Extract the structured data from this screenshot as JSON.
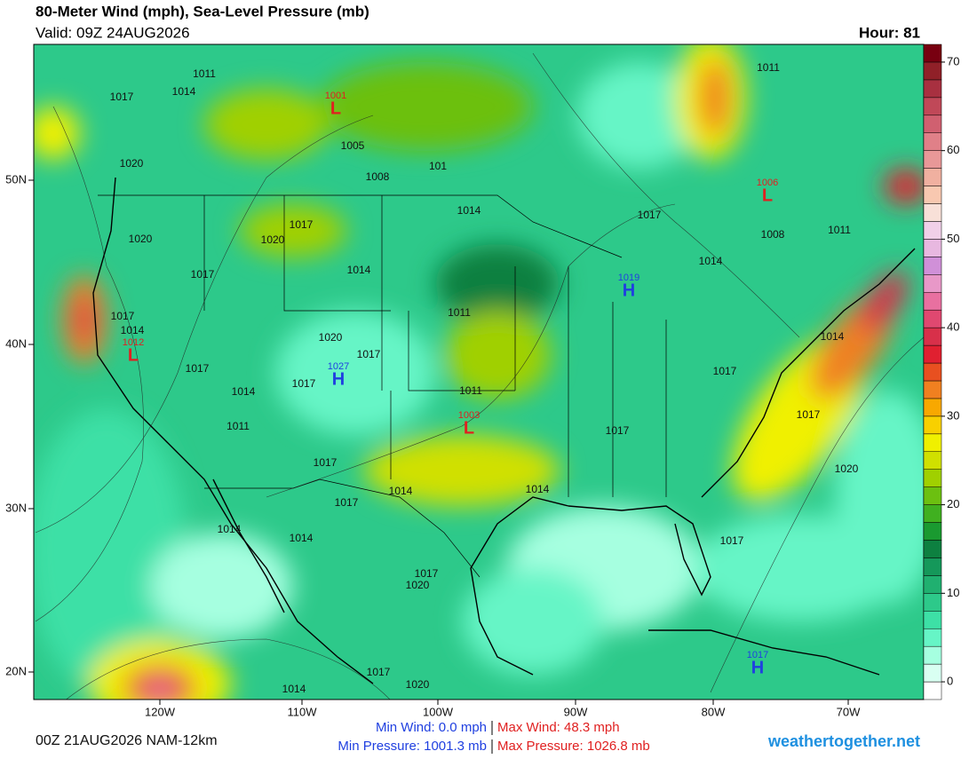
{
  "header": {
    "title": "80-Meter Wind (mph), Sea-Level Pressure (mb)",
    "valid": "Valid: 09Z 24AUG2026",
    "hour": "Hour: 81"
  },
  "colorbar": {
    "lim": [
      -2,
      72
    ],
    "ticks": [
      0,
      10,
      20,
      30,
      40,
      50,
      60,
      70
    ],
    "colors": [
      "#ffffff",
      "#d9fff2",
      "#a6ffe0",
      "#66f5c6",
      "#3de0a6",
      "#2dc98a",
      "#20b070",
      "#15985a",
      "#0d8040",
      "#1a9a30",
      "#40b020",
      "#6cc010",
      "#a0d000",
      "#d0e000",
      "#f0f000",
      "#f8d000",
      "#f8a800",
      "#f08020",
      "#e85020",
      "#e02030",
      "#d8304a",
      "#e04870",
      "#e870a0",
      "#e898c8",
      "#d090d8",
      "#e8b8e0",
      "#f0d0e8",
      "#f8e0d8",
      "#f8c8b0",
      "#f0b0a0",
      "#e89898",
      "#e08088",
      "#d06070",
      "#c04858",
      "#a83040",
      "#902028",
      "#780010"
    ]
  },
  "map": {
    "lon_labels": [
      "120W",
      "110W",
      "100W",
      "90W",
      "80W",
      "70W"
    ],
    "lat_labels": [
      "50N",
      "40N",
      "30N",
      "20N"
    ],
    "centers": [
      {
        "letter": "L",
        "value": "1001"
      },
      {
        "letter": "L",
        "value": "1006"
      },
      {
        "letter": "H",
        "value": "1019"
      },
      {
        "letter": "L",
        "value": "1012"
      },
      {
        "letter": "H",
        "value": "1027"
      },
      {
        "letter": "L",
        "value": "1003"
      },
      {
        "letter": "H",
        "value": "1017"
      }
    ],
    "isobar_labels": [
      "1011",
      "1014",
      "1017",
      "1020",
      "1005",
      "1008",
      "101",
      "1014",
      "1017",
      "1020",
      "1020",
      "1017",
      "1017",
      "1014",
      "1011",
      "1017",
      "1014",
      "1017",
      "1020",
      "1017",
      "1017",
      "1014",
      "1011",
      "1011",
      "1017",
      "1017",
      "1014",
      "1014",
      "1011",
      "1008",
      "1011",
      "1017",
      "1020",
      "1017",
      "1014",
      "1017",
      "1014",
      "1014",
      "1014",
      "1017",
      "1017",
      "1020",
      "1017",
      "1020",
      "1014"
    ]
  },
  "footer": {
    "run": "00Z 21AUG2026 NAM-12km",
    "min_wind": "Min Wind:   0.0 mph",
    "max_wind": "Max Wind:  48.3 mph",
    "min_pressure": "Min Pressure: 1001.3 mb",
    "max_pressure": "Max Pressure: 1026.8 mb",
    "site": "weathertogether.net"
  }
}
